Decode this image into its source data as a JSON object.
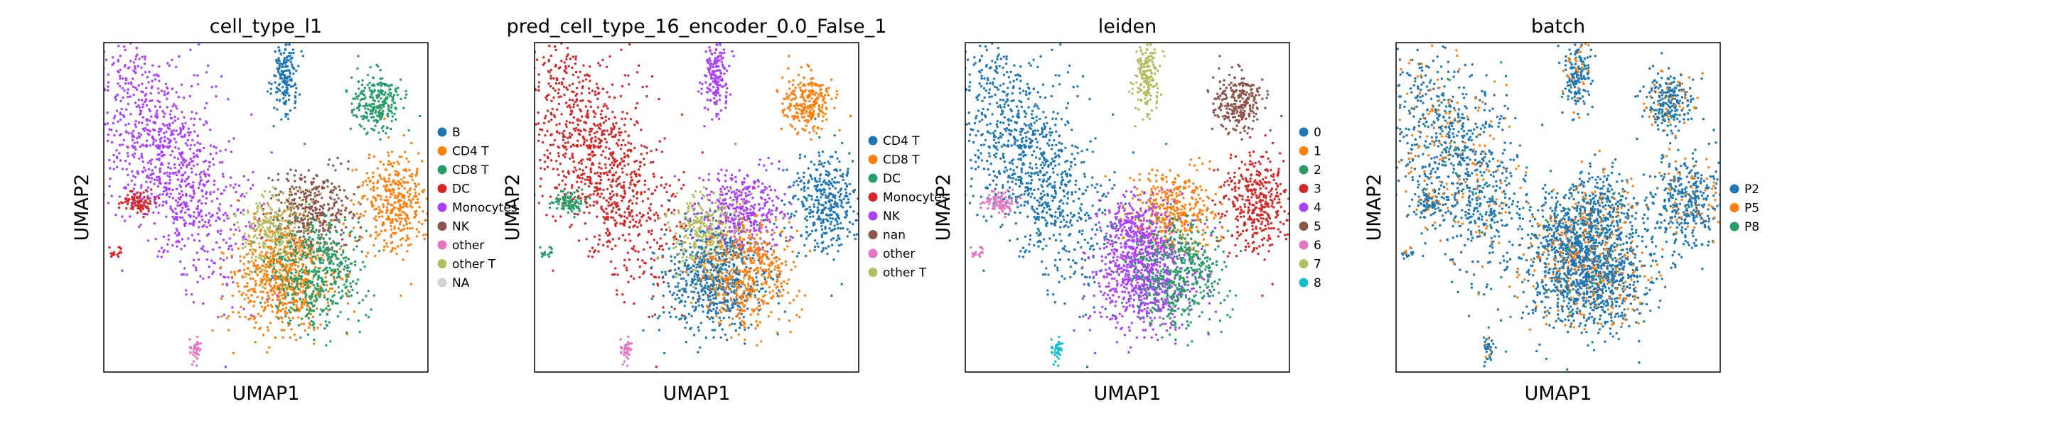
{
  "chart_data": [
    {
      "type": "scatter",
      "title": "cell_type_l1",
      "xlabel": "UMAP1",
      "ylabel": "UMAP2",
      "grid": false,
      "legend_placement": "right",
      "legend": [
        {
          "name": "B",
          "color": "#1f77b4"
        },
        {
          "name": "CD4 T",
          "color": "#ff7f0e"
        },
        {
          "name": "CD8 T",
          "color": "#279e68"
        },
        {
          "name": "DC",
          "color": "#d62728"
        },
        {
          "name": "Monocytes",
          "color": "#aa40fc"
        },
        {
          "name": "NK",
          "color": "#8c564b"
        },
        {
          "name": "other",
          "color": "#e377c2"
        },
        {
          "name": "other T",
          "color": "#b5bd61"
        },
        {
          "name": "NA",
          "color": "#d3d3d3"
        }
      ]
    },
    {
      "type": "scatter",
      "title": "pred_cell_type_16_encoder_0.0_False_1",
      "xlabel": "UMAP1",
      "ylabel": "UMAP2",
      "grid": false,
      "legend_placement": "right",
      "legend": [
        {
          "name": "CD4 T",
          "color": "#1f77b4"
        },
        {
          "name": "CD8 T",
          "color": "#ff7f0e"
        },
        {
          "name": "DC",
          "color": "#279e68"
        },
        {
          "name": "Monocytes",
          "color": "#d62728"
        },
        {
          "name": "NK",
          "color": "#aa40fc"
        },
        {
          "name": "nan",
          "color": "#8c564b"
        },
        {
          "name": "other",
          "color": "#e377c2"
        },
        {
          "name": "other T",
          "color": "#b5bd61"
        }
      ]
    },
    {
      "type": "scatter",
      "title": "leiden",
      "xlabel": "UMAP1",
      "ylabel": "UMAP2",
      "grid": false,
      "legend_placement": "right",
      "legend": [
        {
          "name": "0",
          "color": "#1f77b4"
        },
        {
          "name": "1",
          "color": "#ff7f0e"
        },
        {
          "name": "2",
          "color": "#279e68"
        },
        {
          "name": "3",
          "color": "#d62728"
        },
        {
          "name": "4",
          "color": "#aa40fc"
        },
        {
          "name": "5",
          "color": "#8c564b"
        },
        {
          "name": "6",
          "color": "#e377c2"
        },
        {
          "name": "7",
          "color": "#b5bd61"
        },
        {
          "name": "8",
          "color": "#17becf"
        }
      ]
    },
    {
      "type": "scatter",
      "title": "batch",
      "xlabel": "UMAP1",
      "ylabel": "UMAP2",
      "grid": false,
      "legend_placement": "right",
      "legend": [
        {
          "name": "P2",
          "color": "#1f77b4"
        },
        {
          "name": "P5",
          "color": "#ff7f0e"
        },
        {
          "name": "P8",
          "color": "#279e68"
        }
      ]
    }
  ]
}
